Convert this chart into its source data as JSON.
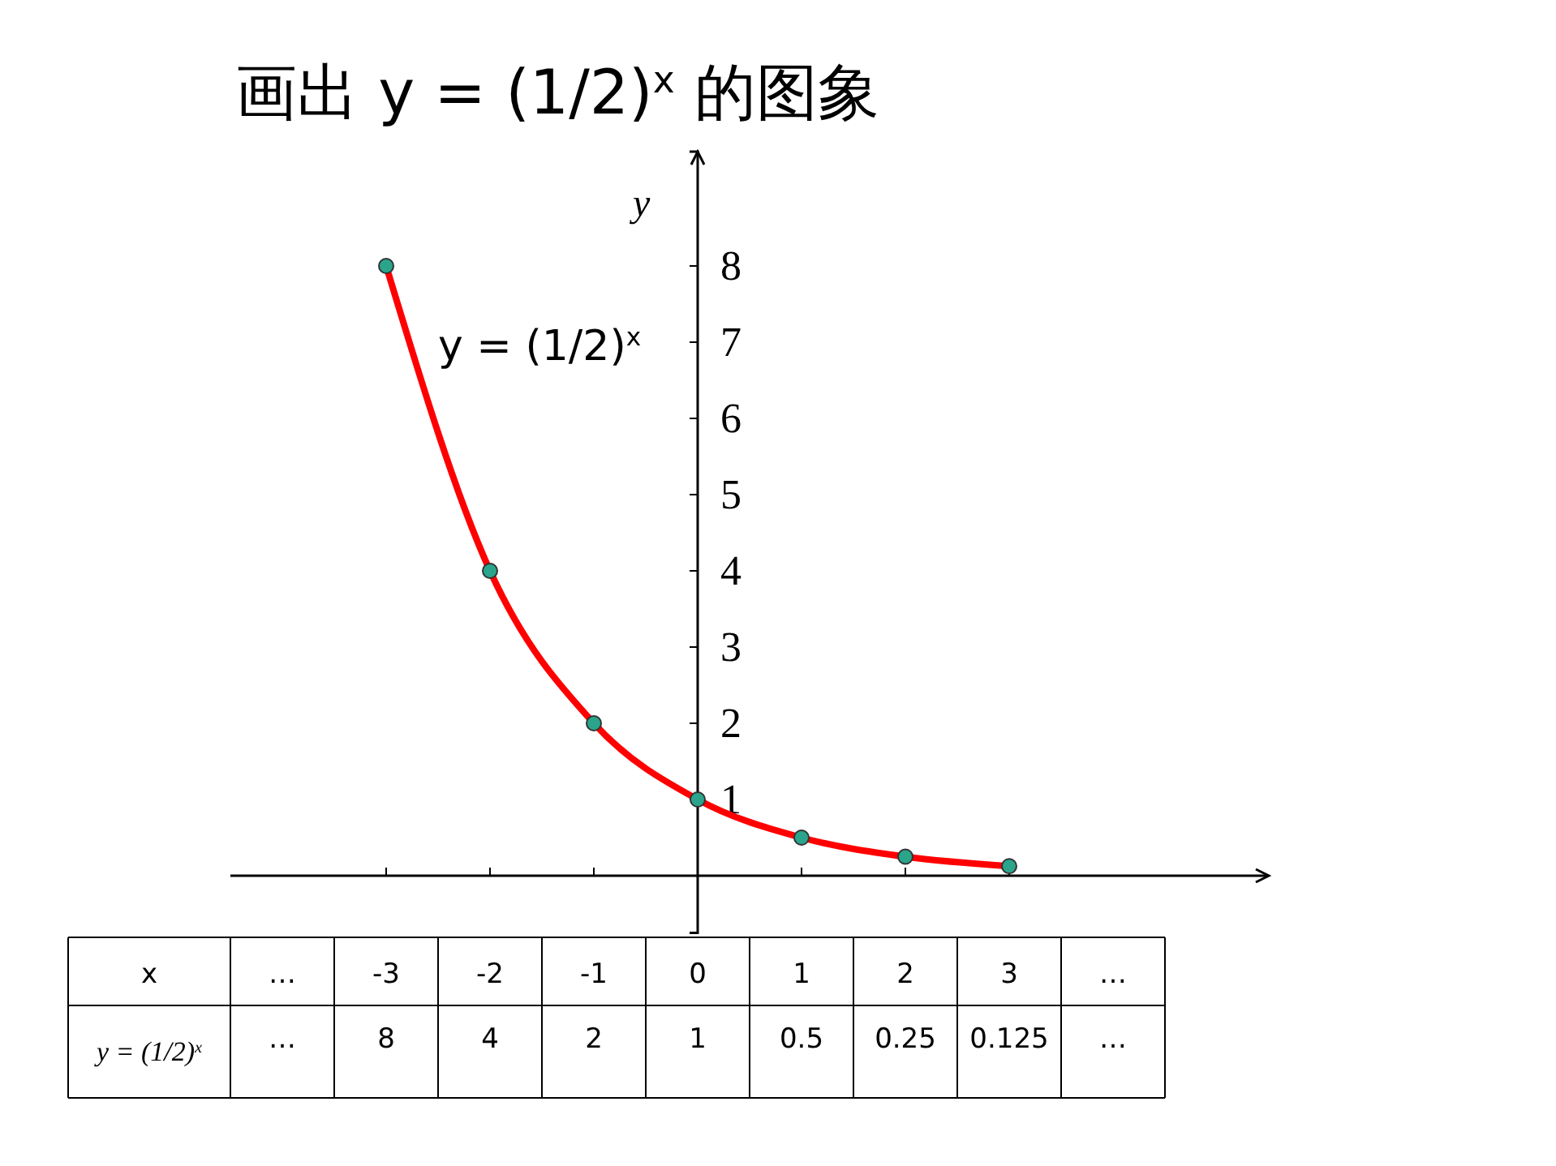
{
  "chart_data": {
    "type": "line",
    "title": "画出 y = (1/2)$^{x}$ 的图象",
    "xlabel": "x",
    "ylabel": "y",
    "annotations": [
      "y = (1/2)$^{x}$",
      "y = (1/2)$^{x}$",
      "…",
      "…"
    ],
    "ylim": [
      -0.75,
      9.5
    ],
    "yticks": [
      1,
      2,
      3,
      4,
      5,
      6,
      7,
      8
    ],
    "categories": [
      null,
      "-3",
      "-2",
      "-1",
      "0",
      "1",
      "2",
      "3",
      null,
      null
    ],
    "series": [
      {
        "color": "#ff0000",
        "marker": "none",
        "values": [
          null,
          8,
          4,
          2,
          1,
          0.5,
          0.25,
          0.125,
          null,
          null
        ]
      },
      {
        "type": "scatter",
        "color": "#2aa58c",
        "values": [
          null,
          8,
          4,
          2,
          1,
          0.5,
          0.25,
          0.125,
          null,
          null
        ],
        "value_labels": [
          "…",
          "8",
          "4",
          "2",
          "1",
          "0.5",
          "0.25",
          "0.125",
          "…",
          null
        ]
      }
    ],
    "marker": "circle",
    "grid": false
  }
}
